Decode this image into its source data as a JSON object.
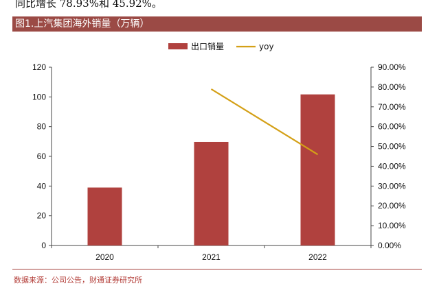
{
  "intro_text": "同比增长 78.93%和 45.92%。",
  "figure_title": "图1.上汽集团海外销量（万辆）",
  "source": "数据来源：公司公告，财通证券研究所",
  "colors": {
    "bar": "#b0413e",
    "line": "#d4a017",
    "title_bg": "#9b4a45"
  },
  "chart_data": {
    "type": "bar",
    "title": "图1.上汽集团海外销量（万辆）",
    "categories": [
      "2020",
      "2021",
      "2022"
    ],
    "series": [
      {
        "name": "出口销量",
        "type": "bar",
        "axis": "left",
        "values": [
          39.0,
          69.7,
          101.7
        ]
      },
      {
        "name": "yoy",
        "type": "line",
        "axis": "right",
        "values": [
          null,
          78.93,
          45.92
        ]
      }
    ],
    "ylim": [
      0,
      120
    ],
    "y_ticks": [
      "0",
      "20",
      "40",
      "60",
      "80",
      "100",
      "120"
    ],
    "y2lim": [
      0,
      90
    ],
    "y2_ticks": [
      "0.00%",
      "10.00%",
      "20.00%",
      "30.00%",
      "40.00%",
      "50.00%",
      "60.00%",
      "70.00%",
      "80.00%",
      "90.00%"
    ],
    "legend": [
      "出口销量",
      "yoy"
    ],
    "legend_position": "top-center"
  }
}
